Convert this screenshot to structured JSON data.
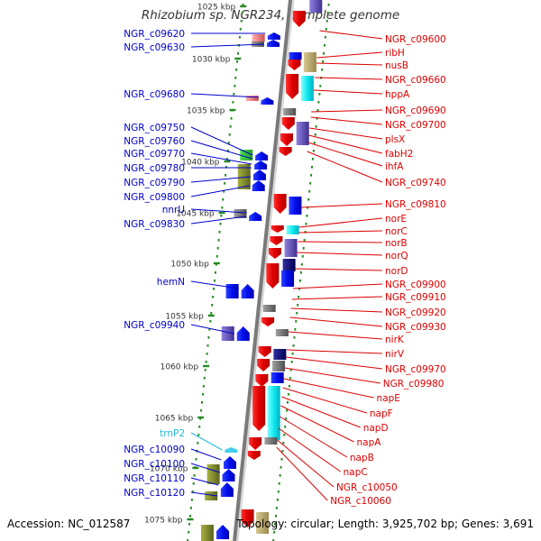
{
  "title": "Rhizobium sp. NGR234, complete genome",
  "footer": {
    "accession": "Accession: NC_012587",
    "summary": "Topology: circular; Length: 3,925,702 bp; Genes: 3,691"
  },
  "colors": {
    "left_label": "#0000cc",
    "right_label": "#dd0000",
    "rna_label": "#22bbdd",
    "scale_dots": "#228b22",
    "forward_gene": "#0000ff",
    "reverse_gene": "#ff0000"
  },
  "kbp_ticks": [
    {
      "label": "1025 kbp",
      "pos": 1025
    },
    {
      "label": "1030 kbp",
      "pos": 1030
    },
    {
      "label": "1035 kbp",
      "pos": 1035
    },
    {
      "label": "1040 kbp",
      "pos": 1040
    },
    {
      "label": "1045 kbp",
      "pos": 1045
    },
    {
      "label": "1050 kbp",
      "pos": 1050
    },
    {
      "label": "1055 kbp",
      "pos": 1055
    },
    {
      "label": "1060 kbp",
      "pos": 1060
    },
    {
      "label": "1065 kbp",
      "pos": 1065
    },
    {
      "label": "1070 kbp",
      "pos": 1070
    },
    {
      "label": "1075 kbp",
      "pos": 1075
    }
  ],
  "left_labels": [
    {
      "text": "NGR_c09620",
      "kind": "gene"
    },
    {
      "text": "NGR_c09630",
      "kind": "gene"
    },
    {
      "text": "NGR_c09680",
      "kind": "gene"
    },
    {
      "text": "NGR_c09750",
      "kind": "gene"
    },
    {
      "text": "NGR_c09760",
      "kind": "gene"
    },
    {
      "text": "NGR_c09770",
      "kind": "gene"
    },
    {
      "text": "NGR_c09780",
      "kind": "gene"
    },
    {
      "text": "NGR_c09790",
      "kind": "gene"
    },
    {
      "text": "NGR_c09800",
      "kind": "gene"
    },
    {
      "text": "nnrU",
      "kind": "gene"
    },
    {
      "text": "NGR_c09830",
      "kind": "gene"
    },
    {
      "text": "hemN",
      "kind": "gene"
    },
    {
      "text": "NGR_c09940",
      "kind": "gene"
    },
    {
      "text": "trnP2",
      "kind": "rna"
    },
    {
      "text": "NGR_c10090",
      "kind": "gene"
    },
    {
      "text": "NGR_c10100",
      "kind": "gene"
    },
    {
      "text": "NGR_c10110",
      "kind": "gene"
    },
    {
      "text": "NGR_c10120",
      "kind": "gene"
    }
  ],
  "right_labels": [
    {
      "text": "NGR_c09600"
    },
    {
      "text": "ribH"
    },
    {
      "text": "nusB"
    },
    {
      "text": "NGR_c09660"
    },
    {
      "text": "hppA"
    },
    {
      "text": "NGR_c09690"
    },
    {
      "text": "NGR_c09700"
    },
    {
      "text": "plsX"
    },
    {
      "text": "fabH2"
    },
    {
      "text": "ihfA"
    },
    {
      "text": "NGR_c09740"
    },
    {
      "text": "NGR_c09810"
    },
    {
      "text": "norE"
    },
    {
      "text": "norC"
    },
    {
      "text": "norB"
    },
    {
      "text": "norQ"
    },
    {
      "text": "norD"
    },
    {
      "text": "NGR_c09900"
    },
    {
      "text": "NGR_c09910"
    },
    {
      "text": "NGR_c09920"
    },
    {
      "text": "NGR_c09930"
    },
    {
      "text": "nirK"
    },
    {
      "text": "nirV"
    },
    {
      "text": "NGR_c09970"
    },
    {
      "text": "NGR_c09980"
    },
    {
      "text": "napE"
    },
    {
      "text": "napF"
    },
    {
      "text": "napD"
    },
    {
      "text": "napA"
    },
    {
      "text": "napB"
    },
    {
      "text": "napC"
    },
    {
      "text": "NGR_c10050"
    },
    {
      "text": "NGR_c10060"
    }
  ]
}
